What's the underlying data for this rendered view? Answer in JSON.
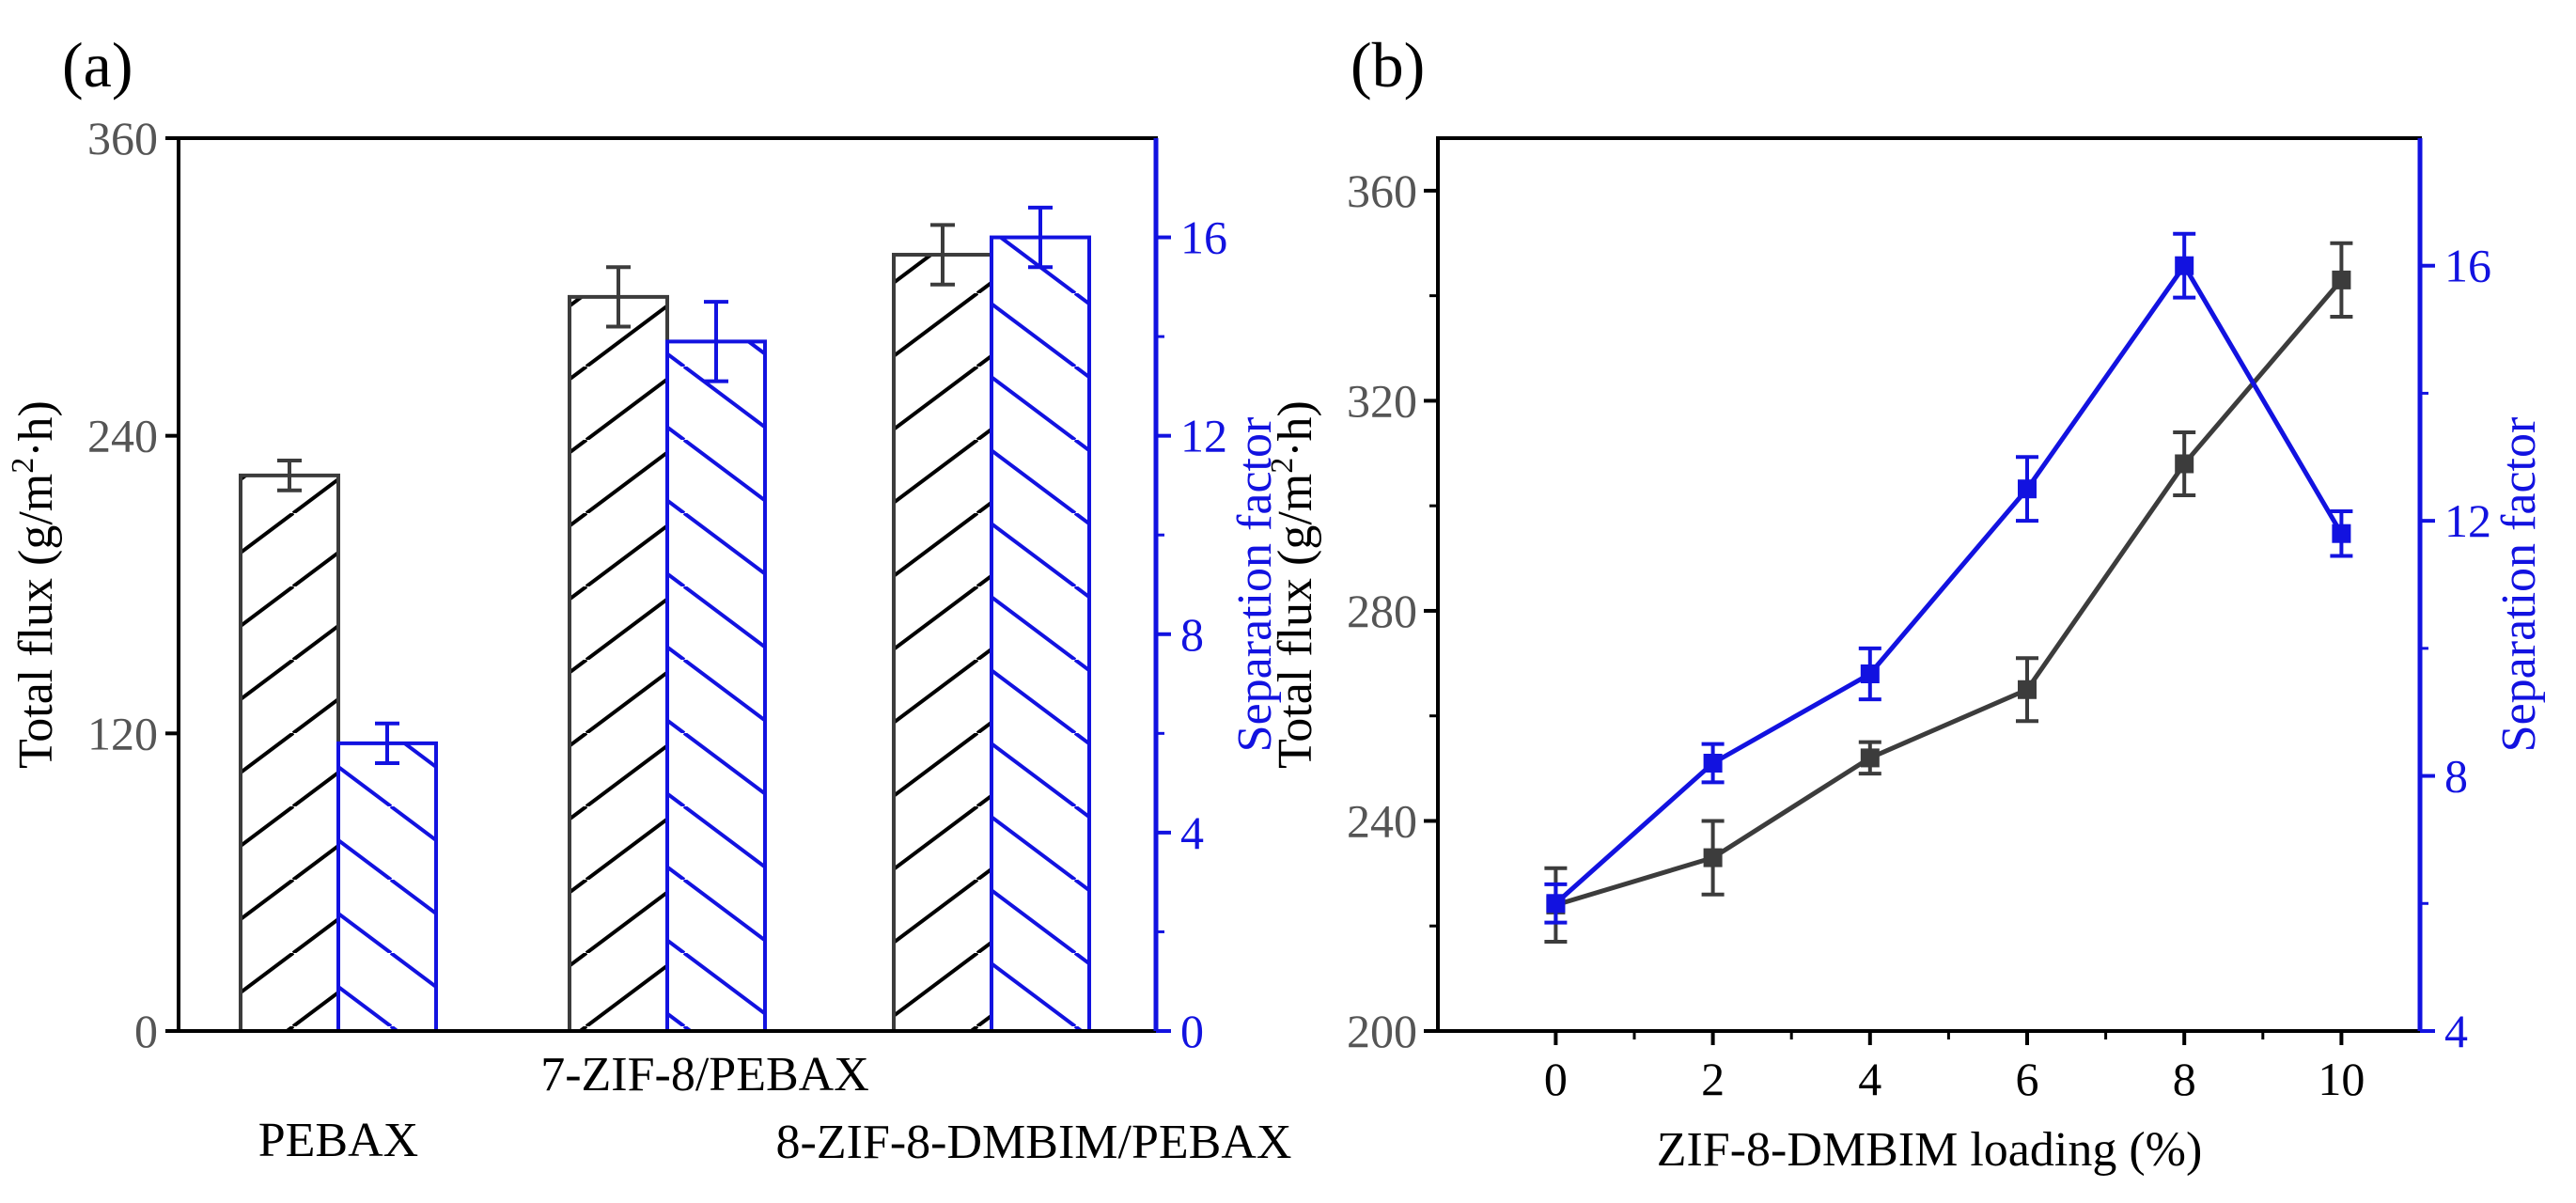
{
  "colors": {
    "flux": "#3c3c3c",
    "separation": "#1212e0",
    "axis": "#000000"
  },
  "panel_labels": {
    "a": "(a)",
    "b": "(b)"
  },
  "chart_data": [
    {
      "type": "bar",
      "panel": "(a)",
      "categories": [
        "PEBAX",
        "7-ZIF-8/PEBAX",
        "8-ZIF-8-DMBIM/PEBAX"
      ],
      "ylabel": "Total flux (g/m²·h)",
      "ylabel_parts": {
        "pre": "Total flux (g/m",
        "sup": "2",
        "post": "·h)"
      },
      "y2label": "Separation factor",
      "ylim": [
        0,
        360
      ],
      "y2lim": [
        0,
        18
      ],
      "yticks": [
        0,
        120,
        240,
        360
      ],
      "y2ticks": [
        0,
        4,
        8,
        12,
        16
      ],
      "series": [
        {
          "name": "Total flux",
          "axis": "left",
          "hatch": "forward",
          "values": [
            224,
            296,
            313
          ],
          "errors": [
            6,
            12,
            12
          ]
        },
        {
          "name": "Separation factor",
          "axis": "right",
          "hatch": "backward",
          "values": [
            5.8,
            13.9,
            16.0
          ],
          "errors": [
            0.4,
            0.8,
            0.6
          ]
        }
      ]
    },
    {
      "type": "line",
      "panel": "(b)",
      "xlabel": "ZIF-8-DMBIM loading (%)",
      "ylabel": "Total flux (g/m²·h)",
      "ylabel_parts": {
        "pre": "Total flux (g/m",
        "sup": "2",
        "post": "·h)"
      },
      "y2label": "Separation factor",
      "x": [
        0,
        2,
        4,
        6,
        8,
        10
      ],
      "xlim": [
        -1.5,
        11
      ],
      "ylim": [
        200,
        370
      ],
      "y2lim": [
        4,
        18
      ],
      "xticks": [
        0,
        2,
        4,
        6,
        8,
        10
      ],
      "yticks": [
        200,
        240,
        280,
        320,
        360
      ],
      "y2ticks": [
        4,
        8,
        12,
        16
      ],
      "series": [
        {
          "name": "Total flux",
          "axis": "left",
          "values": [
            224,
            233,
            252,
            265,
            308,
            343
          ],
          "errors": [
            7,
            7,
            3,
            6,
            6,
            7
          ]
        },
        {
          "name": "Separation factor",
          "axis": "right",
          "values": [
            6.0,
            8.2,
            9.6,
            12.5,
            16.0,
            11.8
          ],
          "errors": [
            0.3,
            0.3,
            0.4,
            0.5,
            0.5,
            0.35
          ]
        }
      ]
    }
  ]
}
